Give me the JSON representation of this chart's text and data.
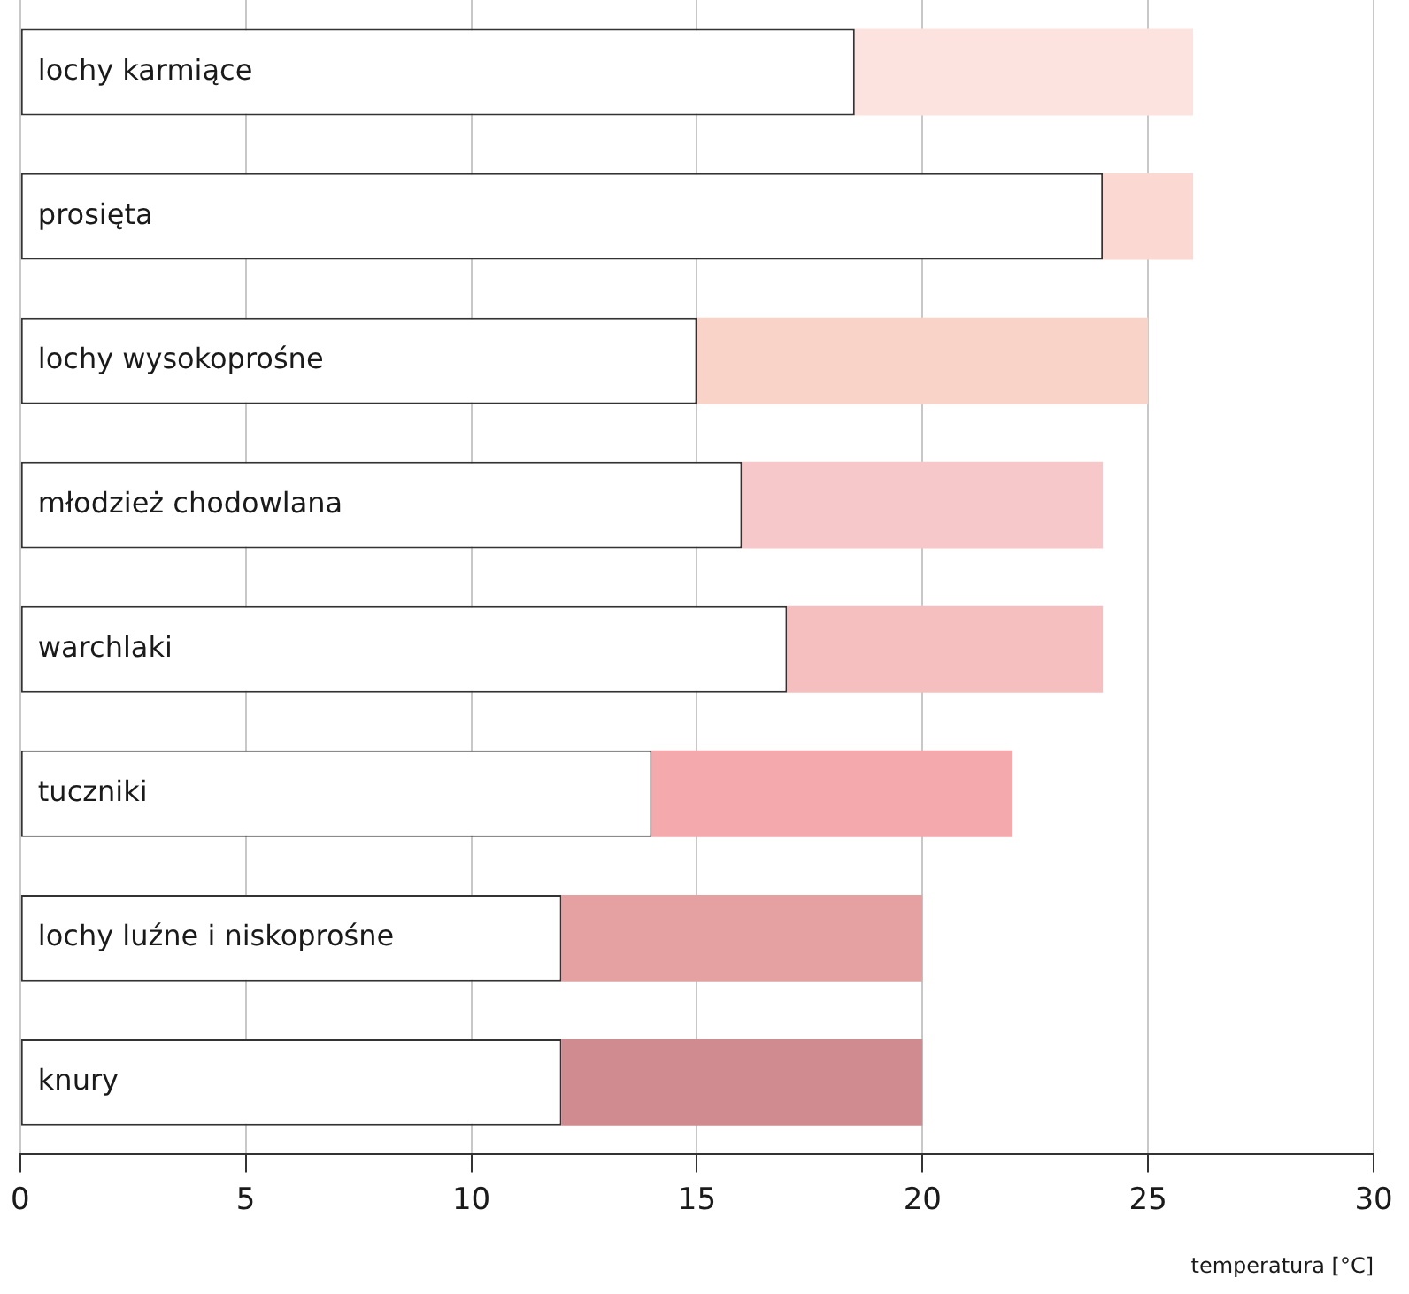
{
  "chart_data": {
    "type": "bar",
    "orientation": "horizontal",
    "stacked": true,
    "categories": [
      "lochy karmiące",
      "prosięta",
      "lochy wysokoprośne",
      "młodzież chodowlana",
      "warchlaki",
      "tuczniki",
      "lochy luźne i niskoprośne",
      "knury"
    ],
    "series": [
      {
        "color": "#ffffff",
        "values": [
          18.5,
          24,
          15,
          16,
          17,
          14,
          12,
          12
        ]
      },
      {
        "colors": [
          "#fde3e0",
          "#fbd8d2",
          "#f9d3c8",
          "#f7c8ca",
          "#f6bfbf",
          "#f4a9ac",
          "#e5a0a2",
          "#cf8b8f"
        ],
        "values": [
          7.5,
          2,
          10,
          8,
          7,
          8,
          8,
          8
        ]
      }
    ],
    "xlim": [
      0,
      30
    ],
    "xticks": [
      0,
      5,
      10,
      15,
      20,
      25,
      30
    ],
    "xlabel": "temperatura [°C]",
    "grid": "x"
  }
}
